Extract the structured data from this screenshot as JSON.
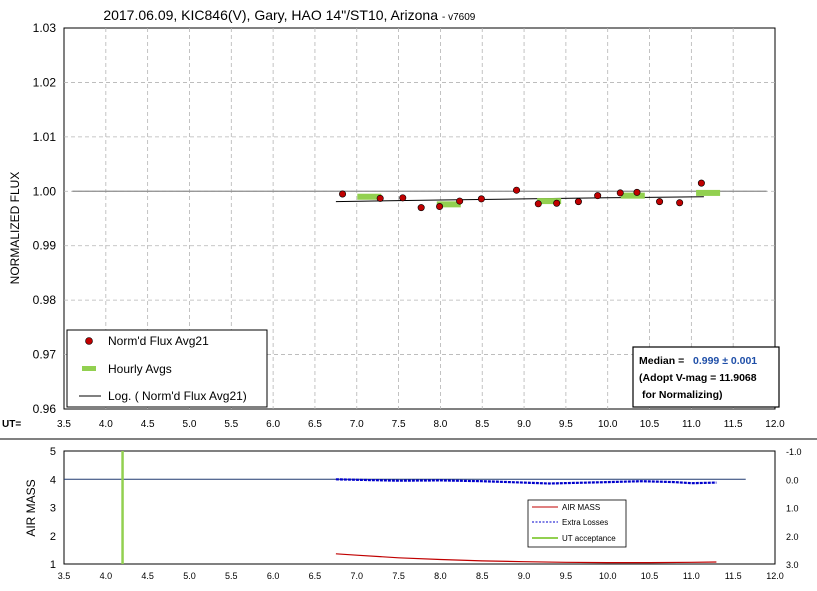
{
  "chart_data": [
    {
      "type": "scatter",
      "title": "2017.06.09, KIC846(V), Gary, HAO 14\"/ST10, Arizona",
      "title_suffix": "- v7609",
      "ylabel": "NORMALIZED FLUX",
      "x_axis_label": "UT=",
      "xlim": [
        3.5,
        12.0
      ],
      "ylim": [
        0.96,
        1.03
      ],
      "x_ticks": [
        "3.5",
        "4.0",
        "4.5",
        "5.0",
        "5.5",
        "6.0",
        "6.5",
        "7.0",
        "7.5",
        "8.0",
        "8.5",
        "9.0",
        "9.5",
        "10.0",
        "10.5",
        "11.0",
        "11.5",
        "12.0"
      ],
      "y_ticks": [
        "0.96",
        "0.97",
        "0.98",
        "0.99",
        "1.00",
        "1.01",
        "1.02",
        "1.03"
      ],
      "grid": true,
      "reference_line": 1.0,
      "series": [
        {
          "name": "Norm'd Flux Avg21",
          "color": "#c00000",
          "x": [
            6.83,
            7.28,
            7.55,
            7.77,
            7.99,
            8.23,
            8.49,
            8.91,
            9.17,
            9.39,
            9.65,
            9.88,
            10.15,
            10.35,
            10.62,
            10.86,
            11.12
          ],
          "y": [
            0.9995,
            0.9987,
            0.9988,
            0.997,
            0.9972,
            0.9982,
            0.9986,
            1.0002,
            0.9977,
            0.9978,
            0.9981,
            0.9992,
            0.9997,
            0.9998,
            0.9981,
            0.9979,
            1.0015
          ]
        },
        {
          "name": "Hourly Avgs",
          "color": "#92d050",
          "x": [
            7.15,
            8.1,
            9.3,
            10.3,
            11.2
          ],
          "y": [
            0.999,
            0.9976,
            0.9982,
            0.9992,
            0.9997
          ]
        },
        {
          "name": "Log. ( Norm'd Flux Avg21)",
          "color": "#000000",
          "x": [
            6.75,
            8.0,
            9.0,
            10.0,
            11.15
          ],
          "y": [
            0.9981,
            0.9984,
            0.9986,
            0.9988,
            0.999
          ]
        }
      ],
      "legend_placement": "bottom-left",
      "annotation": {
        "median_label": "Median =",
        "median_value": "0.999 ± 0.001",
        "line2": "(Adopt V-mag = 11.9068",
        "line3": "for Normalizing)"
      }
    },
    {
      "type": "line",
      "ylabel": "AIR MASS",
      "xlim": [
        3.5,
        12.0
      ],
      "ylim": [
        1,
        5
      ],
      "y2lim": [
        3.0,
        -1.0
      ],
      "x_ticks": [
        "3.5",
        "4.0",
        "4.5",
        "5.0",
        "5.5",
        "6.0",
        "6.5",
        "7.0",
        "7.5",
        "8.0",
        "8.5",
        "9.0",
        "9.5",
        "10.0",
        "10.5",
        "11.0",
        "11.5",
        "12.0"
      ],
      "y_ticks": [
        "1",
        "2",
        "3",
        "4",
        "5"
      ],
      "y2_ticks": [
        "-1.0",
        "0.0",
        "1.0",
        "2.0",
        "3.0"
      ],
      "series": [
        {
          "name": "AIR MASS",
          "color": "#c00000",
          "x": [
            6.75,
            7.0,
            7.5,
            8.0,
            8.5,
            9.0,
            9.5,
            10.0,
            10.5,
            11.0,
            11.3
          ],
          "y": [
            1.36,
            1.31,
            1.22,
            1.16,
            1.11,
            1.08,
            1.06,
            1.05,
            1.05,
            1.06,
            1.07
          ]
        },
        {
          "name": "Extra Losses",
          "color": "#0000cc",
          "x": [
            6.75,
            7.0,
            7.5,
            8.0,
            8.5,
            9.0,
            9.3,
            9.6,
            10.0,
            10.4,
            10.8,
            11.0,
            11.3
          ],
          "y": [
            0.0,
            0.02,
            0.05,
            0.04,
            0.07,
            0.12,
            0.15,
            0.13,
            0.1,
            0.07,
            0.1,
            0.14,
            0.12
          ]
        },
        {
          "name": "UT acceptance",
          "color": "#92d050",
          "x": [
            4.2,
            4.2
          ],
          "y": [
            1,
            5
          ]
        }
      ],
      "legend_placement": "bottom-center-right"
    }
  ]
}
